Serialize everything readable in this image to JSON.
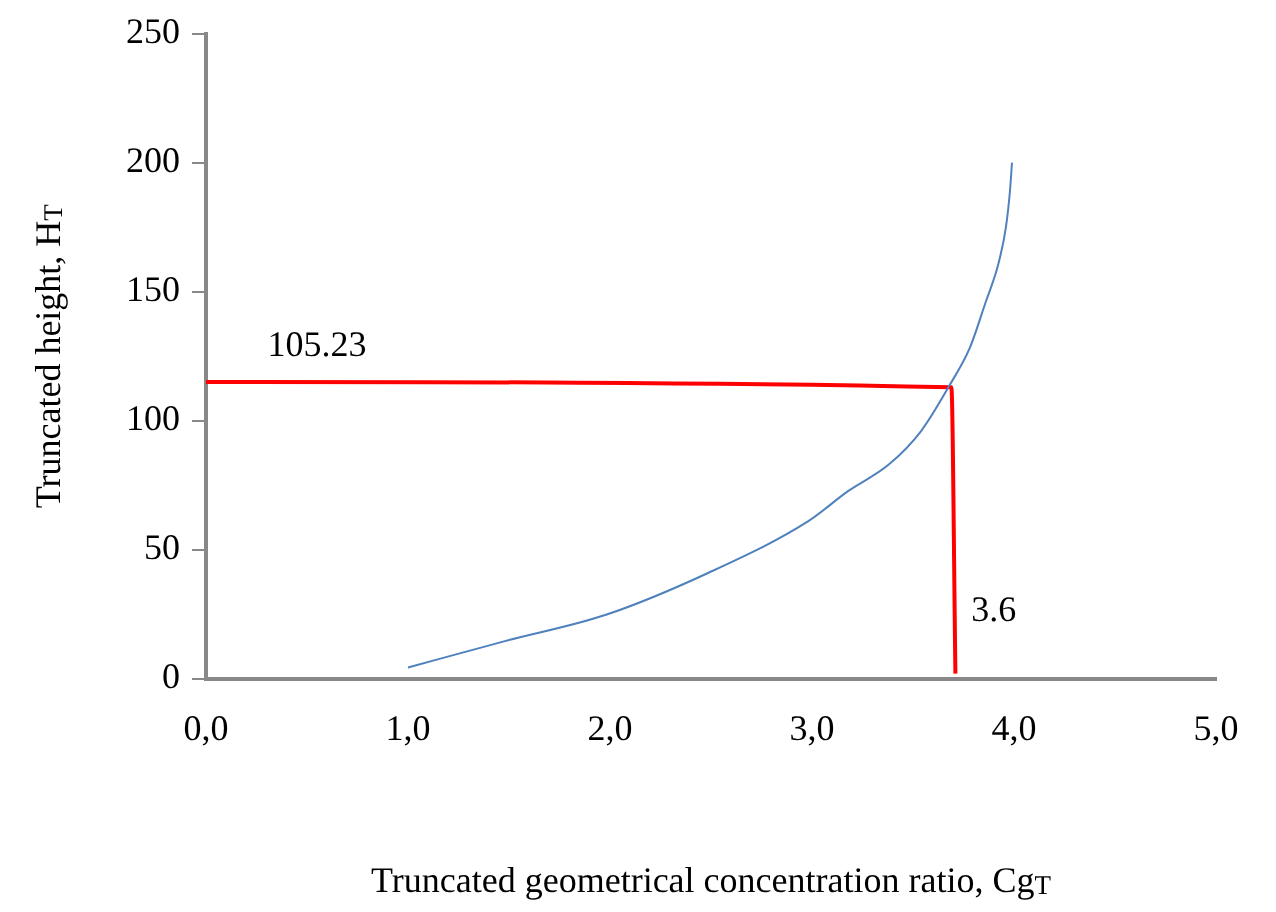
{
  "chart_data": {
    "type": "line",
    "xlabel": "Truncated geometrical concentration ratio, Cg$_{T}$",
    "ylabel": "Truncated height, H$_{T}$",
    "series": [
      {
        "color": "#4f81bd",
        "x": [
          1.0,
          1.48,
          1.98,
          2.48,
          2.98,
          3.18,
          3.38,
          3.54,
          3.68,
          3.78,
          3.86,
          3.92,
          3.96,
          3.98,
          3.99
        ],
        "values": [
          4.4,
          14.6,
          24.8,
          40.8,
          61,
          72.8,
          83,
          96,
          113.6,
          128,
          146,
          160,
          175,
          189,
          200
        ]
      },
      {
        "color": "#ff0000",
        "x": [
          0,
          3.69,
          3.71
        ],
        "values": [
          115,
          113,
          2
        ]
      }
    ],
    "annotations": [
      "105.23",
      "3.6"
    ],
    "xlim": [
      0,
      5
    ],
    "xticks": [
      {
        "value": 0,
        "label": "0,0"
      },
      {
        "value": 1,
        "label": "1,0"
      },
      {
        "value": 2,
        "label": "2,0"
      },
      {
        "value": 3,
        "label": "3,0"
      },
      {
        "value": 4,
        "label": "4,0"
      },
      {
        "value": 5,
        "label": "5,0"
      }
    ],
    "ylim": [
      0,
      250
    ],
    "yticks": [
      0,
      50,
      100,
      150,
      200,
      250
    ],
    "grid": false,
    "legend": false
  }
}
